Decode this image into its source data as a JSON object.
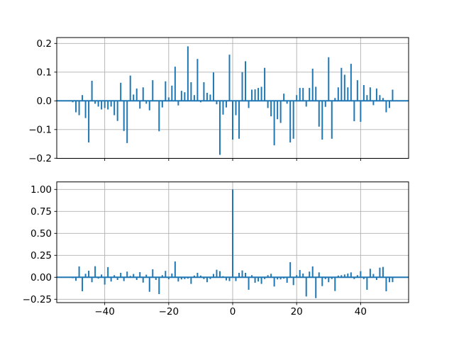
{
  "figure": {
    "background": "#ffffff",
    "title": ""
  },
  "colors": {
    "bar": "#1f77b4",
    "zero_line": "#1f77b4",
    "grid": "#b0b0b0",
    "frame": "#000000",
    "tick": "#000000",
    "tick_label": "#000000"
  },
  "chart_data": [
    {
      "id": "xcorr-top-panel",
      "type": "bar",
      "title": "",
      "xlabel": "",
      "ylabel": "",
      "grid": true,
      "zero_line": true,
      "bar_style": "vline",
      "x_start": -50,
      "x_step": 1,
      "xlim": [
        -55,
        55
      ],
      "ylim": [
        -0.2005,
        0.2205
      ],
      "xticks": [
        {
          "v": -40,
          "label": "−40"
        },
        {
          "v": -20,
          "label": "−20"
        },
        {
          "v": 0,
          "label": "0"
        },
        {
          "v": 20,
          "label": "20"
        },
        {
          "v": 40,
          "label": "40"
        }
      ],
      "show_x_labels": false,
      "yticks": [
        {
          "v": -0.2,
          "label": "−0.2"
        },
        {
          "v": -0.1,
          "label": "−0.1"
        },
        {
          "v": 0.0,
          "label": "0.0"
        },
        {
          "v": 0.1,
          "label": "0.1"
        },
        {
          "v": 0.2,
          "label": "0.2"
        }
      ],
      "values": [
        -0.005,
        -0.04,
        -0.05,
        0.02,
        -0.06,
        -0.145,
        0.07,
        -0.01,
        -0.02,
        -0.03,
        -0.025,
        -0.03,
        -0.02,
        -0.05,
        -0.07,
        0.063,
        -0.105,
        -0.147,
        0.088,
        0.022,
        0.043,
        -0.027,
        0.047,
        -0.01,
        -0.033,
        0.072,
        0.0,
        -0.106,
        -0.023,
        0.068,
        0.012,
        0.053,
        0.119,
        -0.016,
        0.035,
        0.03,
        0.19,
        0.065,
        0.02,
        0.146,
        -0.005,
        0.065,
        0.028,
        0.022,
        0.099,
        -0.012,
        -0.188,
        -0.048,
        -0.023,
        0.161,
        -0.135,
        -0.05,
        -0.132,
        0.1,
        0.138,
        -0.025,
        0.039,
        0.04,
        0.045,
        0.049,
        0.115,
        -0.025,
        -0.054,
        -0.155,
        -0.064,
        -0.077,
        0.025,
        -0.01,
        -0.145,
        -0.132,
        0.02,
        0.045,
        0.045,
        -0.02,
        0.045,
        0.112,
        0.049,
        -0.09,
        -0.135,
        -0.021,
        0.152,
        -0.132,
        0.01,
        0.047,
        0.115,
        0.091,
        0.047,
        0.129,
        -0.071,
        0.072,
        -0.073,
        0.055,
        0.02,
        0.047,
        -0.015,
        0.043,
        0.02,
        0.01,
        -0.04,
        -0.025,
        0.039
      ]
    },
    {
      "id": "acorr-bottom-panel",
      "type": "bar",
      "title": "",
      "xlabel": "",
      "ylabel": "",
      "grid": true,
      "zero_line": true,
      "bar_style": "vline",
      "x_start": -50,
      "x_step": 1,
      "xlim": [
        -55,
        55
      ],
      "ylim": [
        -0.288,
        1.0855
      ],
      "xticks": [
        {
          "v": -40,
          "label": "−40"
        },
        {
          "v": -20,
          "label": "−20"
        },
        {
          "v": 0,
          "label": "0"
        },
        {
          "v": 20,
          "label": "20"
        },
        {
          "v": 40,
          "label": "40"
        }
      ],
      "show_x_labels": true,
      "yticks": [
        {
          "v": -0.25,
          "label": "−0.25"
        },
        {
          "v": 0.0,
          "label": "0.00"
        },
        {
          "v": 0.25,
          "label": "0.25"
        },
        {
          "v": 0.5,
          "label": "0.50"
        },
        {
          "v": 0.75,
          "label": "0.75"
        },
        {
          "v": 1.0,
          "label": "1.00"
        }
      ],
      "values": [
        -0.01,
        -0.04,
        0.124,
        -0.159,
        0.04,
        0.075,
        -0.056,
        0.126,
        -0.015,
        0.032,
        -0.083,
        0.116,
        -0.048,
        0.024,
        -0.03,
        0.051,
        -0.043,
        0.065,
        0.016,
        0.038,
        -0.03,
        0.059,
        -0.06,
        0.03,
        -0.165,
        0.091,
        -0.03,
        -0.191,
        0.024,
        0.073,
        -0.022,
        0.043,
        0.18,
        -0.048,
        -0.024,
        -0.02,
        -0.015,
        -0.075,
        0.02,
        0.051,
        0.02,
        -0.02,
        -0.056,
        -0.02,
        0.038,
        0.086,
        0.07,
        0.013,
        -0.035,
        -0.043,
        1.0,
        -0.043,
        0.051,
        0.078,
        0.051,
        -0.142,
        0.024,
        -0.062,
        -0.048,
        -0.075,
        -0.02,
        0.024,
        0.04,
        -0.105,
        -0.024,
        -0.024,
        -0.015,
        -0.062,
        0.172,
        -0.089,
        0.024,
        0.083,
        0.043,
        -0.218,
        0.065,
        0.124,
        -0.237,
        0.056,
        -0.1,
        -0.02,
        -0.056,
        -0.02,
        -0.156,
        0.02,
        0.024,
        0.032,
        0.043,
        0.056,
        -0.02,
        0.024,
        0.07,
        -0.02,
        -0.142,
        0.097,
        0.038,
        -0.03,
        0.11,
        0.118,
        -0.159,
        -0.056,
        -0.055
      ]
    }
  ]
}
